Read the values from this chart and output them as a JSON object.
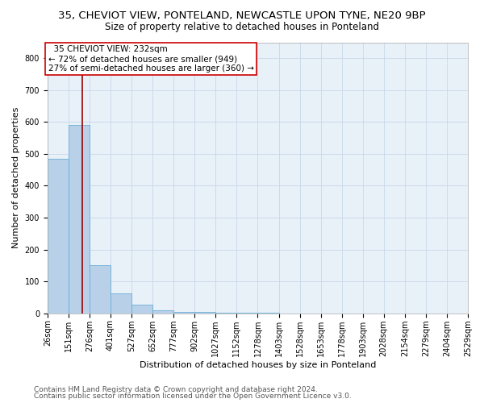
{
  "title1": "35, CHEVIOT VIEW, PONTELAND, NEWCASTLE UPON TYNE, NE20 9BP",
  "title2": "Size of property relative to detached houses in Ponteland",
  "xlabel": "Distribution of detached houses by size in Ponteland",
  "ylabel": "Number of detached properties",
  "bar_values": [
    484,
    591,
    150,
    62,
    26,
    10,
    5,
    3,
    2,
    1,
    1,
    0,
    0,
    0,
    0,
    0,
    0,
    0,
    0,
    0
  ],
  "bin_edges": [
    26,
    151,
    276,
    401,
    527,
    652,
    777,
    902,
    1027,
    1152,
    1278,
    1403,
    1528,
    1653,
    1778,
    1903,
    2028,
    2154,
    2279,
    2404,
    2529
  ],
  "bar_color": "#b8d0e8",
  "bar_edge_color": "#6baed6",
  "grid_color": "#c8d8ea",
  "vline_x": 232,
  "vline_color": "#990000",
  "annotation_text": "  35 CHEVIOT VIEW: 232sqm\n← 72% of detached houses are smaller (949)\n27% of semi-detached houses are larger (360) →",
  "annotation_box_facecolor": "#ffffff",
  "annotation_box_edgecolor": "#cc0000",
  "bg_color": "#e8f0f8",
  "ylim": [
    0,
    850
  ],
  "yticks": [
    0,
    100,
    200,
    300,
    400,
    500,
    600,
    700,
    800
  ],
  "footer1": "Contains HM Land Registry data © Crown copyright and database right 2024.",
  "footer2": "Contains public sector information licensed under the Open Government Licence v3.0.",
  "title1_fontsize": 9.5,
  "title2_fontsize": 8.5,
  "xlabel_fontsize": 8,
  "ylabel_fontsize": 8,
  "tick_fontsize": 7,
  "annotation_fontsize": 7.5,
  "footer_fontsize": 6.5
}
